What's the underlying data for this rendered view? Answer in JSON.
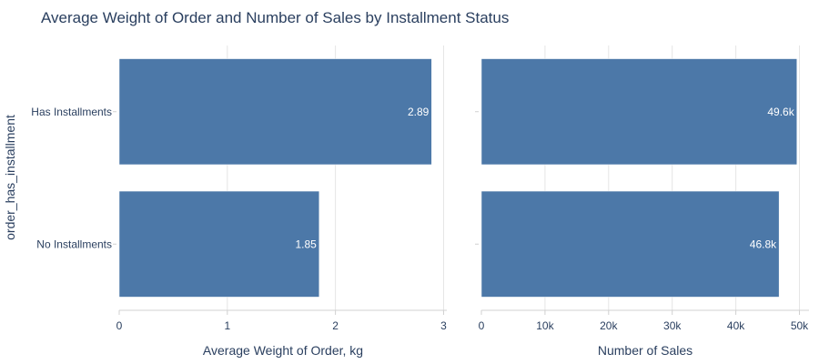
{
  "chart_data": {
    "type": "bar",
    "orientation": "horizontal",
    "title": "Average Weight of Order and Number of Sales by Installment Status",
    "ylabel": "order_has_installment",
    "categories": [
      "Has Installments",
      "No Installments"
    ],
    "bar_color": "#4c78a8",
    "panels": [
      {
        "xlabel": "Average Weight of Order, kg",
        "xlim": [
          0,
          3.03
        ],
        "ticks": [
          0,
          1,
          2,
          3
        ],
        "tick_labels": [
          "0",
          "1",
          "2",
          "3"
        ],
        "values": [
          2.89,
          1.85
        ],
        "value_labels": [
          "2.89",
          "1.85"
        ]
      },
      {
        "xlabel": "Number of Sales",
        "xlim": [
          0,
          51500
        ],
        "ticks": [
          0,
          10000,
          20000,
          30000,
          40000,
          50000
        ],
        "tick_labels": [
          "0",
          "10k",
          "20k",
          "30k",
          "40k",
          "50k"
        ],
        "values": [
          49600,
          46800
        ],
        "value_labels": [
          "49.6k",
          "46.8k"
        ]
      }
    ],
    "grid": true,
    "legend": "none"
  }
}
